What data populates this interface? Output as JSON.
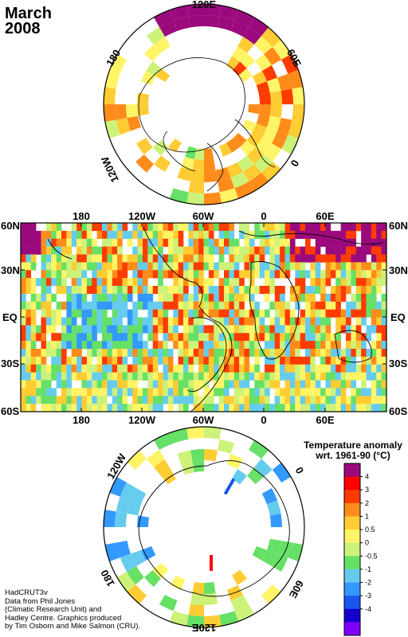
{
  "title": {
    "month": "March",
    "year": "2008"
  },
  "north_polar": {
    "labels": [
      "120E",
      "60E",
      "0",
      "120W",
      "180"
    ]
  },
  "main_map": {
    "top_lon_labels": [
      "180",
      "120W",
      "60W",
      "0",
      "60E"
    ],
    "bottom_lon_labels": [
      "180",
      "120W",
      "60W",
      "0",
      "60E"
    ],
    "left_lat_labels": [
      "60N",
      "30N",
      "EQ",
      "30S",
      "60S"
    ],
    "right_lat_labels": [
      "60N",
      "30N",
      "EQ",
      "30S",
      "60S"
    ]
  },
  "south_polar": {
    "labels": [
      "120W",
      "0",
      "60E",
      "180",
      "120E"
    ]
  },
  "legend": {
    "title_line1": "Temperature anomaly",
    "title_line2": "wrt. 1961-90  (°C)",
    "ticks": [
      "4",
      "3",
      "2",
      "1",
      "0.5",
      "0",
      "-0.5",
      "-1",
      "-2",
      "-3",
      "-4"
    ],
    "colors": [
      "#9b0a7d",
      "#ff0000",
      "#ff3c00",
      "#ff8c1a",
      "#ffcc33",
      "#fff566",
      "#ccf27a",
      "#66e066",
      "#66ccee",
      "#3399ff",
      "#1a55ee",
      "#1400cc",
      "#8000ff"
    ]
  },
  "credit": {
    "line1": "HadCRUT3v",
    "line2": "Data from Phil Jones",
    "line3": "(Climatic Research Unit) and",
    "line4": "Hadley Centre.  Graphics produced",
    "line5": "by Tim Osborn and Mike Salmon (CRU)."
  }
}
